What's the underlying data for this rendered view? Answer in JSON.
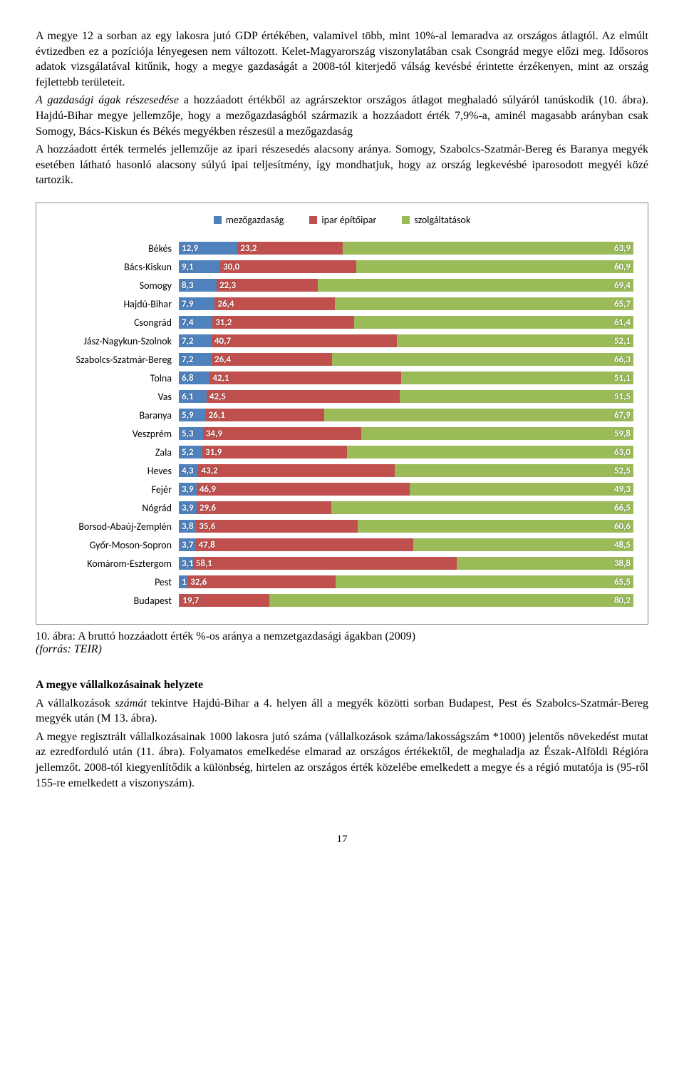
{
  "paragraphs": {
    "p1": "A megye 12 a sorban az egy lakosra jutó GDP értékében, valamivel több, mint 10%-al lemaradva az országos átlagtól. Az elmúlt évtizedben ez a pozíciója lényegesen nem változott. Kelet-Magyarország viszonylatában csak Csongrád megye előzi meg. Idősoros adatok vizsgálatával kitűnik, hogy a megye gazdaságát a 2008-tól kiterjedő válság kevésbé érintette érzékenyen, mint az ország fejlettebb területeit.",
    "p2a": "A gazdasági ágak részesedése",
    "p2b": " a hozzáadott értékből az agrárszektor országos átlagot meghaladó súlyáról tanúskodik (10. ábra). Hajdú-Bihar megye jellemzője, hogy a mezőgazdaságból származik a hozzáadott érték 7,9%-a, aminél magasabb arányban csak Somogy, Bács-Kiskun és Békés megyékben részesül a mezőgazdaság",
    "p3": "A hozzáadott érték termelés jellemzője az ipari részesedés alacsony aránya. Somogy, Szabolcs-Szatmár-Bereg és Baranya megyék esetében látható hasonló alacsony súlyú ipai teljesítmény, így mondhatjuk, hogy az ország legkevésbé iparosodott megyéi közé tartozik."
  },
  "chart": {
    "type": "stacked-bar-horizontal",
    "legend": [
      {
        "label": "mezőgazdaság",
        "color": "#4f81bd"
      },
      {
        "label": "ipar építőipar",
        "color": "#c0504d"
      },
      {
        "label": "szolgáltatások",
        "color": "#9bbb59"
      }
    ],
    "colors": {
      "agri": "#4f81bd",
      "ind": "#c0504d",
      "serv": "#9bbb59"
    },
    "rows": [
      {
        "label": "Békés",
        "v": [
          12.9,
          23.2,
          63.9
        ]
      },
      {
        "label": "Bács-Kiskun",
        "v": [
          9.1,
          30.0,
          60.9
        ]
      },
      {
        "label": "Somogy",
        "v": [
          8.3,
          22.3,
          69.4
        ]
      },
      {
        "label": "Hajdú-Bihar",
        "v": [
          7.9,
          26.4,
          65.7
        ]
      },
      {
        "label": "Csongrád",
        "v": [
          7.4,
          31.2,
          61.4
        ]
      },
      {
        "label": "Jász-Nagykun-Szolnok",
        "v": [
          7.2,
          40.7,
          52.1
        ]
      },
      {
        "label": "Szabolcs-Szatmár-Bereg",
        "v": [
          7.2,
          26.4,
          66.3
        ]
      },
      {
        "label": "Tolna",
        "v": [
          6.8,
          42.1,
          51.1
        ]
      },
      {
        "label": "Vas",
        "v": [
          6.1,
          42.5,
          51.5
        ]
      },
      {
        "label": "Baranya",
        "v": [
          5.9,
          26.1,
          67.9
        ]
      },
      {
        "label": "Veszprém",
        "v": [
          5.3,
          34.9,
          59.8
        ]
      },
      {
        "label": "Zala",
        "v": [
          5.2,
          31.9,
          63.0
        ]
      },
      {
        "label": "Heves",
        "v": [
          4.3,
          43.2,
          52.5
        ]
      },
      {
        "label": "Fejér",
        "v": [
          3.9,
          46.9,
          49.3
        ]
      },
      {
        "label": "Nógrád",
        "v": [
          3.9,
          29.6,
          66.5
        ]
      },
      {
        "label": "Borsod-Abaúj-Zemplén",
        "v": [
          3.8,
          35.6,
          60.6
        ]
      },
      {
        "label": "Győr-Moson-Sopron",
        "v": [
          3.7,
          47.8,
          48.5
        ]
      },
      {
        "label": "Komárom-Esztergom",
        "v": [
          3.1,
          58.1,
          38.8
        ]
      },
      {
        "label": "Pest",
        "v": [
          1.9,
          32.6,
          65.5
        ]
      },
      {
        "label": "Budapest",
        "v": [
          0.2,
          19.7,
          80.2
        ]
      }
    ],
    "label_fontsize": 14,
    "value_fontsize": 13
  },
  "caption": {
    "line1": "10. ábra: A bruttó hozzáadott érték %-os aránya a nemzetgazdasági ágakban (2009)",
    "line2": "(forrás: TEIR)"
  },
  "section": {
    "heading": "A megye vállalkozásainak helyzete",
    "p4a": "A vállalkozások ",
    "p4b": "számát",
    "p4c": " tekintve Hajdú-Bihar a 4. helyen áll a megyék közötti sorban Budapest, Pest és Szabolcs-Szatmár-Bereg megyék után (M 13. ábra).",
    "p5": "A megye regisztrált vállalkozásainak 1000 lakosra jutó száma (vállalkozások száma/lakosságszám *1000) jelentős növekedést mutat az ezredforduló után (11. ábra). Folyamatos emelkedése elmarad az országos értékektől, de meghaladja az Észak-Alföldi Régióra jellemzőt. 2008-tól kiegyenlítődik a különbség, hirtelen az országos érték közelébe emelkedett a megye és a régió mutatója is (95-ről 155-re emelkedett a viszonyszám)."
  },
  "page_number": "17"
}
